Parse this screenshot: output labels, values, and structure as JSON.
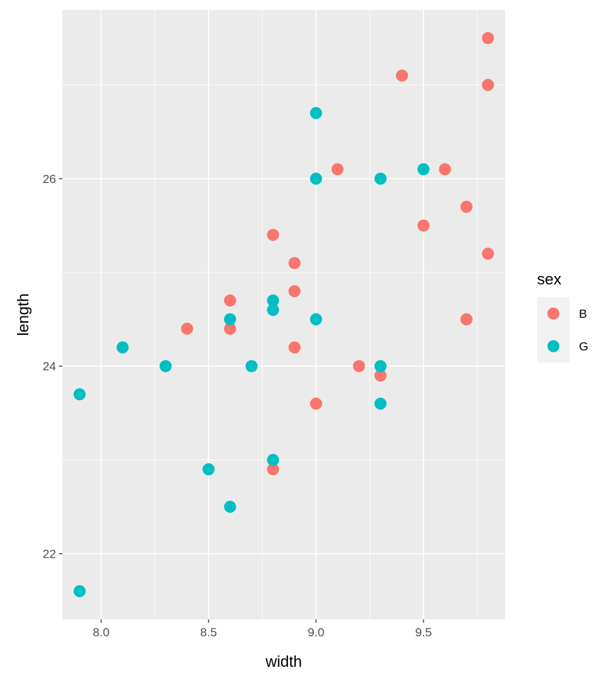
{
  "chart_data": {
    "type": "scatter",
    "title": "",
    "xlabel": "width",
    "ylabel": "length",
    "xlim": [
      7.82,
      9.88
    ],
    "ylim": [
      21.3,
      27.8
    ],
    "x_ticks": [
      8.0,
      8.5,
      9.0,
      9.5
    ],
    "x_tick_labels": [
      "8.0",
      "8.5",
      "9.0",
      "9.5"
    ],
    "y_ticks": [
      22,
      24,
      26
    ],
    "y_tick_labels": [
      "22",
      "24",
      "26"
    ],
    "grid": true,
    "legend": {
      "title": "sex",
      "position": "right",
      "entries": [
        {
          "label": "B",
          "color": "#F8766D"
        },
        {
          "label": "G",
          "color": "#00BFC4"
        }
      ]
    },
    "series": [
      {
        "name": "B",
        "color": "#F8766D",
        "points": [
          [
            9.8,
            27.5
          ],
          [
            9.4,
            27.1
          ],
          [
            9.8,
            27.0
          ],
          [
            9.1,
            26.1
          ],
          [
            9.6,
            26.1
          ],
          [
            9.7,
            25.7
          ],
          [
            9.5,
            25.5
          ],
          [
            8.8,
            25.4
          ],
          [
            9.8,
            25.2
          ],
          [
            8.9,
            25.1
          ],
          [
            8.9,
            24.8
          ],
          [
            8.6,
            24.7
          ],
          [
            9.7,
            24.5
          ],
          [
            8.4,
            24.4
          ],
          [
            8.6,
            24.4
          ],
          [
            8.9,
            24.2
          ],
          [
            9.2,
            24.0
          ],
          [
            9.3,
            23.9
          ],
          [
            9.0,
            23.6
          ],
          [
            8.8,
            22.9
          ]
        ]
      },
      {
        "name": "G",
        "color": "#00BFC4",
        "points": [
          [
            9.0,
            26.7
          ],
          [
            9.0,
            26.0
          ],
          [
            9.3,
            26.0
          ],
          [
            9.5,
            26.1
          ],
          [
            8.8,
            24.7
          ],
          [
            8.8,
            24.6
          ],
          [
            8.6,
            24.5
          ],
          [
            9.0,
            24.5
          ],
          [
            8.1,
            24.2
          ],
          [
            8.3,
            24.0
          ],
          [
            8.7,
            24.0
          ],
          [
            9.3,
            24.0
          ],
          [
            7.9,
            23.7
          ],
          [
            9.3,
            23.6
          ],
          [
            8.8,
            23.0
          ],
          [
            8.5,
            22.9
          ],
          [
            8.6,
            22.5
          ],
          [
            7.9,
            21.6
          ]
        ]
      }
    ]
  }
}
